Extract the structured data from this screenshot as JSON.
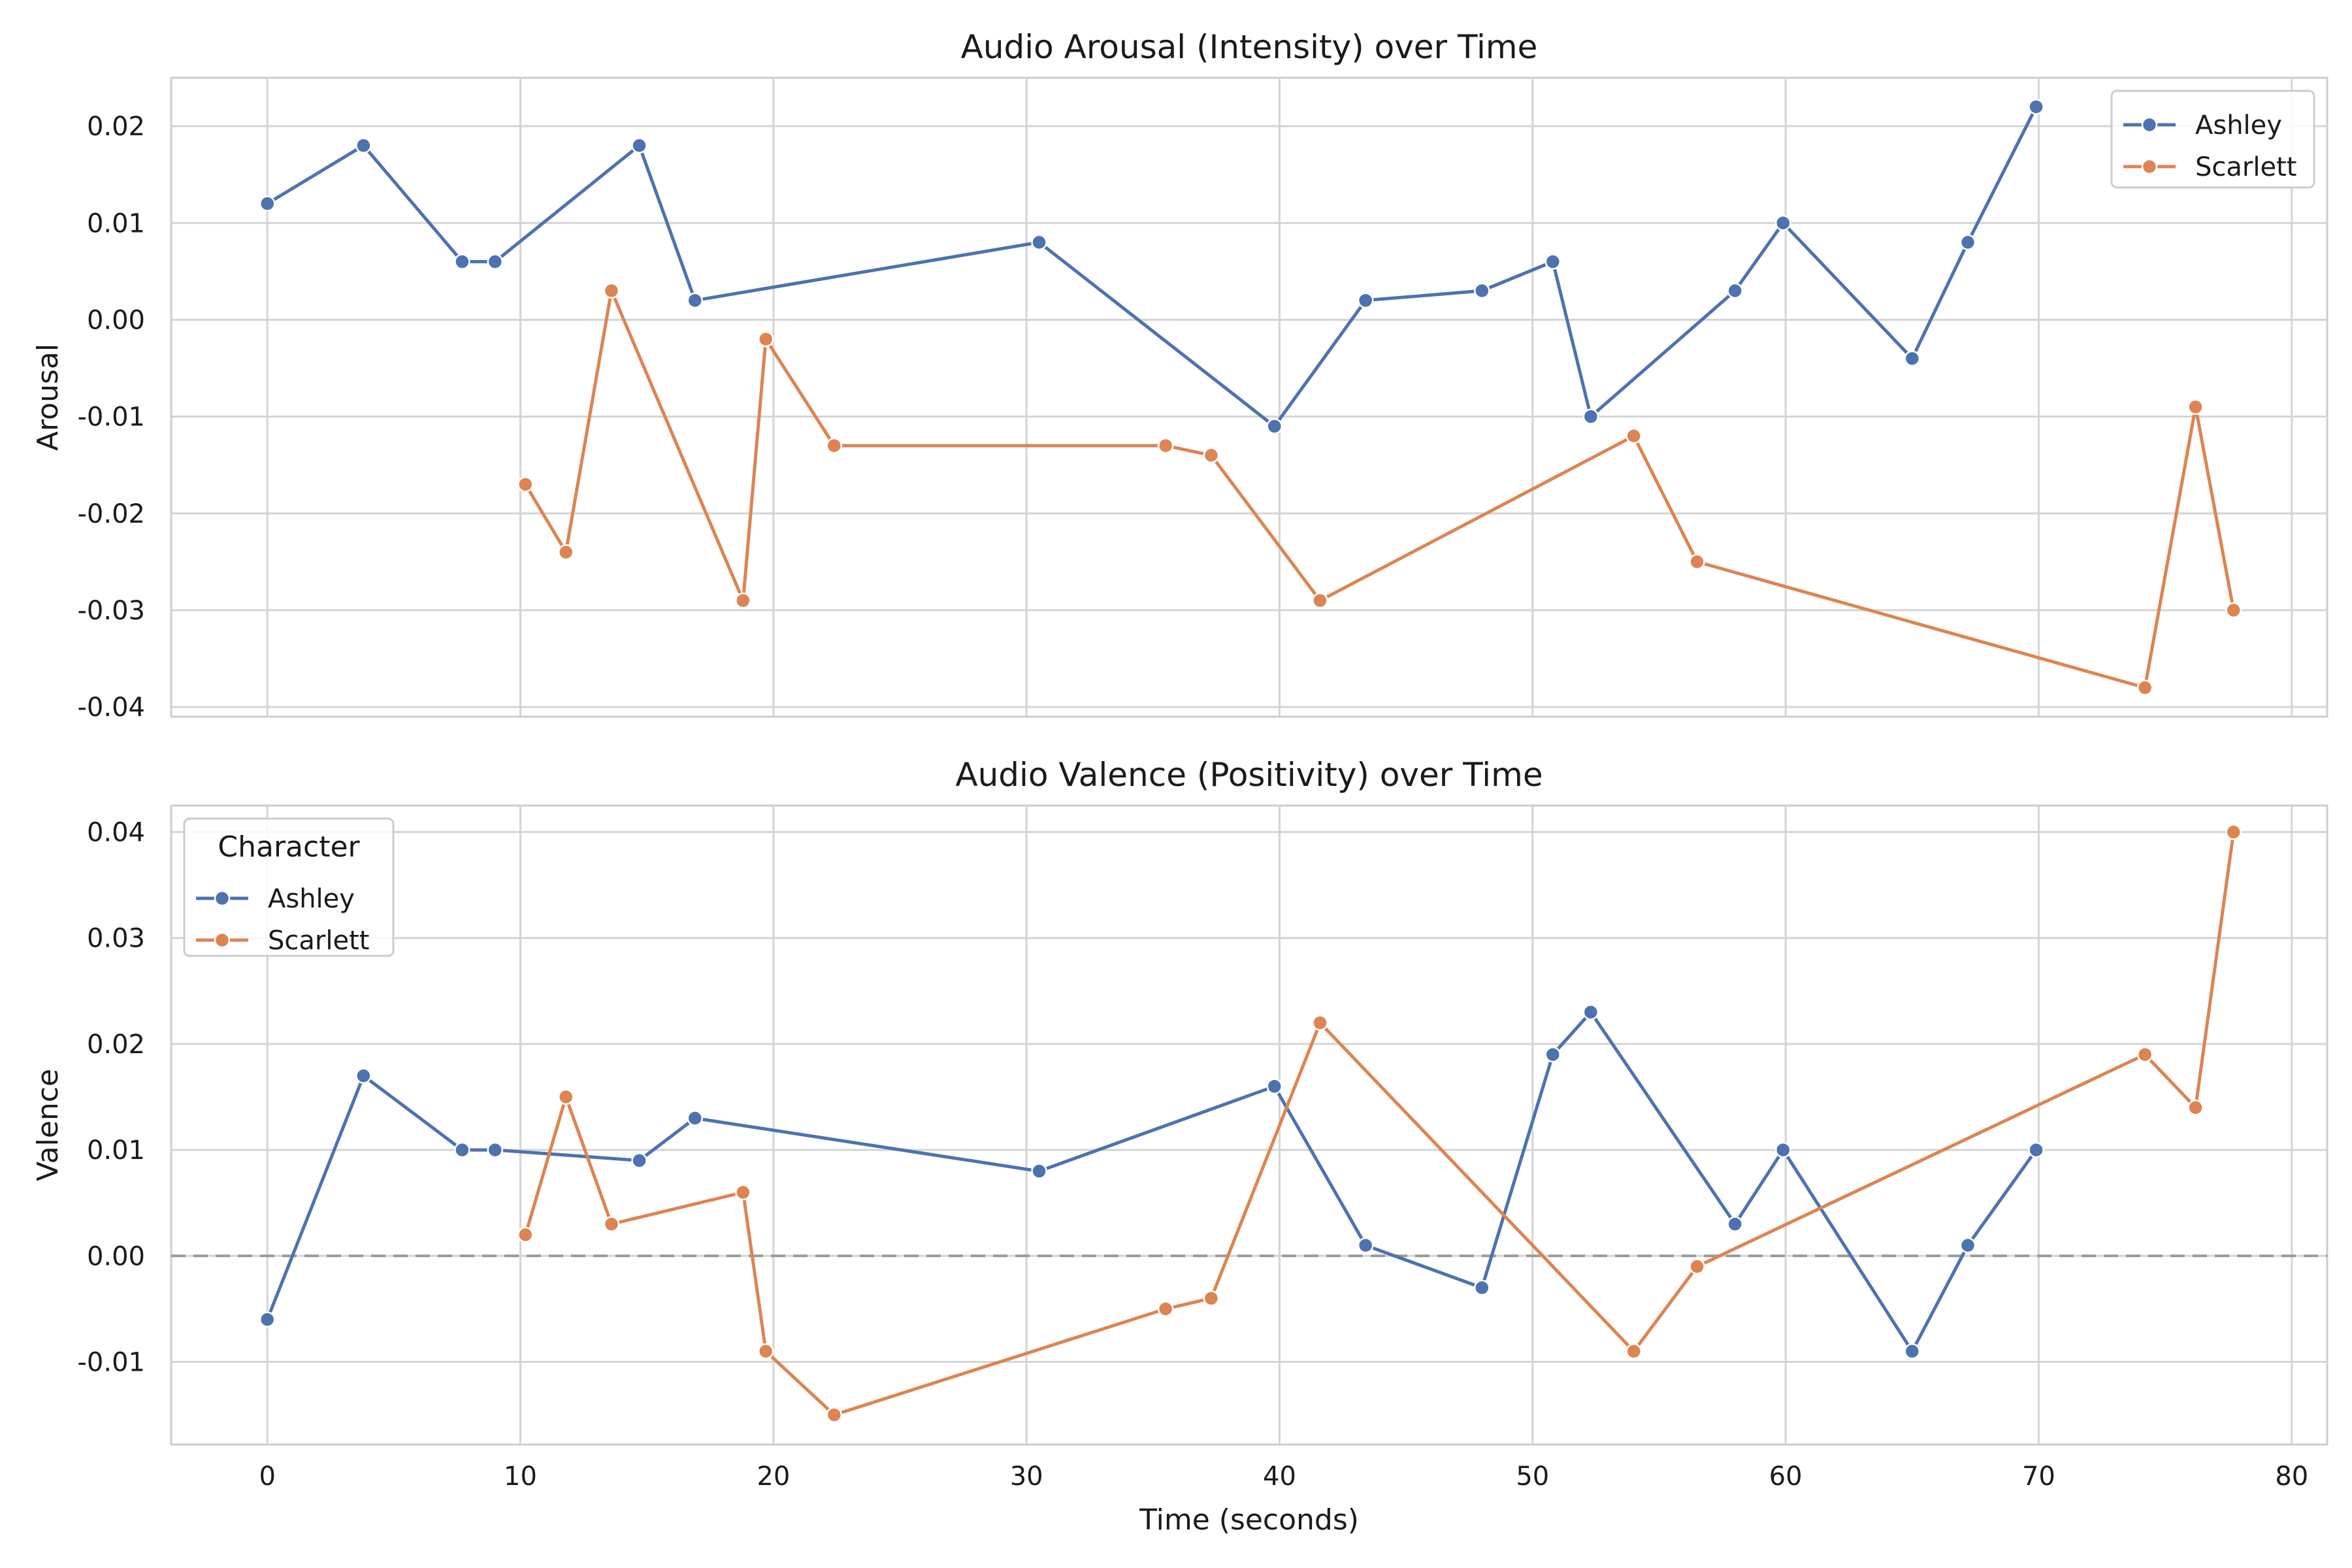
{
  "chart_data": [
    {
      "type": "line",
      "title": "Audio Arousal (Intensity) over Time",
      "xlabel": "",
      "ylabel": "Arousal",
      "xlim": [
        -3.8,
        81.4
      ],
      "ylim": [
        -0.041,
        0.025
      ],
      "xticks": [
        "0",
        "10",
        "20",
        "30",
        "40",
        "50",
        "60",
        "70",
        "80"
      ],
      "yticks": [
        "-0.04",
        "-0.03",
        "-0.02",
        "-0.01",
        "0.00",
        "0.01",
        "0.02"
      ],
      "grid": true,
      "legend": {
        "title": "",
        "placement": "top-right"
      },
      "series": [
        {
          "name": "Ashley",
          "color": "#4c72b0",
          "x": [
            0,
            3.8,
            7.7,
            9.0,
            14.7,
            16.9,
            30.5,
            39.8,
            43.4,
            48.0,
            50.8,
            52.3,
            58.0,
            59.9,
            65.0,
            67.2,
            69.9
          ],
          "y": [
            0.012,
            0.018,
            0.006,
            0.006,
            0.018,
            0.002,
            0.008,
            -0.011,
            0.002,
            0.003,
            0.006,
            -0.01,
            0.003,
            0.01,
            -0.004,
            0.008,
            0.022
          ]
        },
        {
          "name": "Scarlett",
          "color": "#dd8452",
          "x": [
            10.2,
            11.8,
            13.6,
            18.8,
            19.7,
            22.4,
            35.5,
            37.3,
            41.6,
            54.0,
            56.5,
            74.2,
            76.2,
            77.7
          ],
          "y": [
            -0.017,
            -0.024,
            0.003,
            -0.029,
            -0.002,
            -0.013,
            -0.013,
            -0.014,
            -0.029,
            -0.012,
            -0.025,
            -0.038,
            -0.009,
            -0.03
          ]
        }
      ]
    },
    {
      "type": "line",
      "title": "Audio Valence (Positivity) over Time",
      "xlabel": "Time (seconds)",
      "ylabel": "Valence",
      "xlim": [
        -3.8,
        81.4
      ],
      "ylim": [
        -0.0178,
        0.0425
      ],
      "xticks": [
        "0",
        "10",
        "20",
        "30",
        "40",
        "50",
        "60",
        "70",
        "80"
      ],
      "yticks": [
        "-0.01",
        "0.00",
        "0.01",
        "0.02",
        "0.03",
        "0.04"
      ],
      "grid": true,
      "reference_line": {
        "y": 0,
        "style": "dashed",
        "color": "#999999"
      },
      "legend": {
        "title": "Character",
        "placement": "top-left"
      },
      "series": [
        {
          "name": "Ashley",
          "color": "#4c72b0",
          "x": [
            0,
            3.8,
            7.7,
            9.0,
            14.7,
            16.9,
            30.5,
            39.8,
            43.4,
            48.0,
            50.8,
            52.3,
            58.0,
            59.9,
            65.0,
            67.2,
            69.9
          ],
          "y": [
            -0.006,
            0.017,
            0.01,
            0.01,
            0.009,
            0.013,
            0.008,
            0.016,
            0.001,
            -0.003,
            0.019,
            0.023,
            0.003,
            0.01,
            -0.009,
            0.001,
            0.01
          ]
        },
        {
          "name": "Scarlett",
          "color": "#dd8452",
          "x": [
            10.2,
            11.8,
            13.6,
            18.8,
            19.7,
            22.4,
            35.5,
            37.3,
            41.6,
            54.0,
            56.5,
            74.2,
            76.2,
            77.7
          ],
          "y": [
            0.002,
            0.015,
            0.003,
            0.006,
            -0.009,
            -0.015,
            -0.005,
            -0.004,
            0.022,
            -0.009,
            -0.001,
            0.019,
            0.014,
            0.04
          ]
        }
      ]
    }
  ]
}
